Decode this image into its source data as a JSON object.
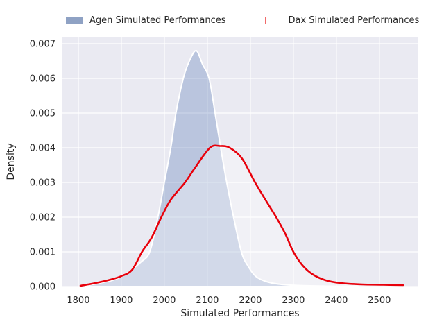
{
  "figure": {
    "xlabel": "Simulated Performances",
    "ylabel": "Density"
  },
  "legend": {
    "items": [
      {
        "label": "Agen Simulated Performances",
        "swatch_fill": "#8fa2c4",
        "swatch_border": "#8fa2c4"
      },
      {
        "label": "Dax Simulated Performances",
        "swatch_fill": "#ffffff",
        "swatch_border": "#f16a6a"
      }
    ]
  },
  "colors": {
    "figure_background": "#ffffff",
    "axes_background": "#eaeaf2",
    "grid": "#ffffff",
    "tick_text": "#262626",
    "agen_fill": "rgba(76,114,176,0.30)",
    "agen_edge": "#ffffff",
    "dax_fill": "rgba(255,255,255,0.35)",
    "dax_line": "#e8000b"
  },
  "chart_data": {
    "type": "area",
    "subtype": "kde-density",
    "title": "",
    "xlabel": "Simulated Performances",
    "ylabel": "Density",
    "xlim": [
      1763,
      2589
    ],
    "ylim": [
      0,
      0.0072
    ],
    "grid": true,
    "legend_position": "top-center frameless",
    "x_ticks": [
      {
        "v": 1800,
        "label": "1800"
      },
      {
        "v": 1900,
        "label": "1900"
      },
      {
        "v": 2000,
        "label": "2000"
      },
      {
        "v": 2100,
        "label": "2100"
      },
      {
        "v": 2200,
        "label": "2200"
      },
      {
        "v": 2300,
        "label": "2300"
      },
      {
        "v": 2400,
        "label": "2400"
      },
      {
        "v": 2500,
        "label": "2500"
      }
    ],
    "y_ticks": [
      {
        "v": 0.0,
        "label": "0.000"
      },
      {
        "v": 0.001,
        "label": "0.001"
      },
      {
        "v": 0.002,
        "label": "0.002"
      },
      {
        "v": 0.003,
        "label": "0.003"
      },
      {
        "v": 0.004,
        "label": "0.004"
      },
      {
        "v": 0.005,
        "label": "0.005"
      },
      {
        "v": 0.006,
        "label": "0.006"
      },
      {
        "v": 0.007,
        "label": "0.007"
      }
    ],
    "series": [
      {
        "name": "Agen Simulated Performances",
        "style": "filled KDE, translucent steel-blue fill, white edge",
        "peak": {
          "x": 2074,
          "y": 0.0068
        },
        "points": [
          [
            1815,
            2e-05
          ],
          [
            1850,
            0.0001
          ],
          [
            1885,
            0.0002
          ],
          [
            1915,
            0.0004
          ],
          [
            1945,
            0.0007
          ],
          [
            1966,
            0.001
          ],
          [
            1985,
            0.002
          ],
          [
            2000,
            0.003
          ],
          [
            2015,
            0.004
          ],
          [
            2027,
            0.005
          ],
          [
            2044,
            0.006
          ],
          [
            2058,
            0.0065
          ],
          [
            2074,
            0.0068
          ],
          [
            2089,
            0.0064
          ],
          [
            2104,
            0.006
          ],
          [
            2118,
            0.005
          ],
          [
            2131,
            0.004
          ],
          [
            2145,
            0.003
          ],
          [
            2161,
            0.002
          ],
          [
            2179,
            0.001
          ],
          [
            2194,
            0.0006
          ],
          [
            2212,
            0.0003
          ],
          [
            2235,
            0.00015
          ],
          [
            2265,
            7e-05
          ],
          [
            2310,
            3e-05
          ],
          [
            2380,
            1e-05
          ],
          [
            2450,
            1e-05
          ]
        ]
      },
      {
        "name": "Dax Simulated Performances",
        "style": "KDE curve, red line, faint white fill",
        "peak": {
          "x": 2130,
          "y": 0.00405
        },
        "points": [
          [
            1805,
            2e-05
          ],
          [
            1840,
            0.0001
          ],
          [
            1875,
            0.0002
          ],
          [
            1900,
            0.0003
          ],
          [
            1925,
            0.00048
          ],
          [
            1948,
            0.001
          ],
          [
            1970,
            0.0014
          ],
          [
            1993,
            0.002
          ],
          [
            2015,
            0.0025
          ],
          [
            2048,
            0.003
          ],
          [
            2070,
            0.0034
          ],
          [
            2106,
            0.004
          ],
          [
            2130,
            0.00405
          ],
          [
            2152,
            0.004
          ],
          [
            2180,
            0.0037
          ],
          [
            2211,
            0.003
          ],
          [
            2235,
            0.0025
          ],
          [
            2260,
            0.002
          ],
          [
            2282,
            0.0015
          ],
          [
            2300,
            0.001
          ],
          [
            2322,
            0.0006
          ],
          [
            2345,
            0.00035
          ],
          [
            2375,
            0.00018
          ],
          [
            2410,
            0.0001
          ],
          [
            2460,
            6e-05
          ],
          [
            2510,
            5e-05
          ],
          [
            2555,
            4e-05
          ]
        ]
      }
    ]
  }
}
